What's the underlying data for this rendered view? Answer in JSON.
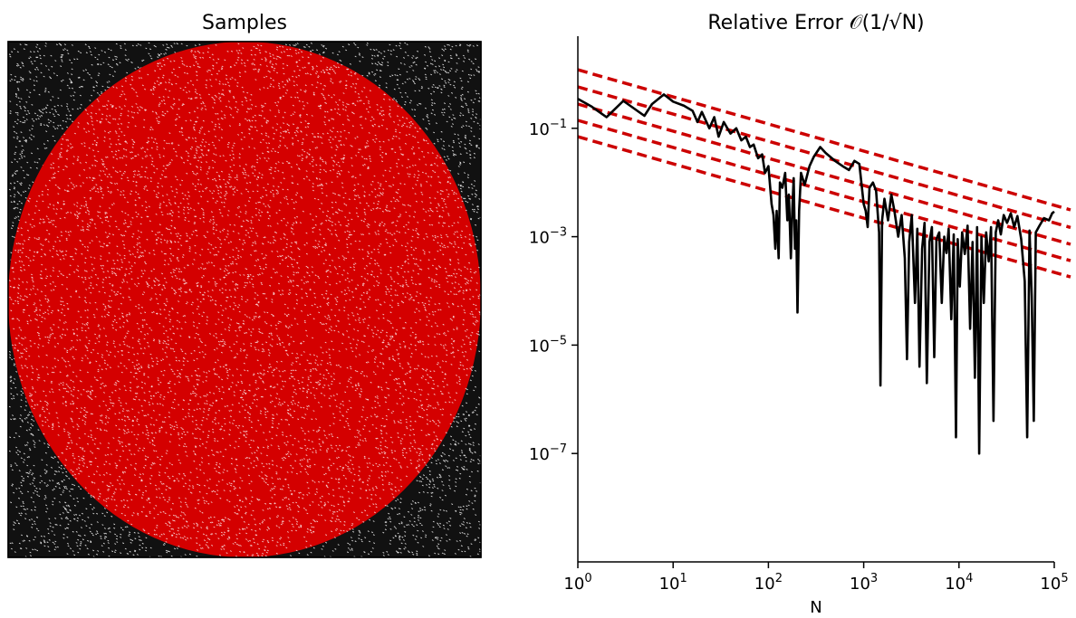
{
  "chart_data": [
    {
      "type": "scatter",
      "title": "Samples",
      "xlim": [
        -1,
        1
      ],
      "ylim": [
        -1,
        1
      ],
      "axes_visible": false,
      "circle_radius": 1,
      "series": [
        {
          "role": "inside unit circle",
          "color": "#cc0000"
        },
        {
          "role": "outside unit circle",
          "color": "#000000"
        }
      ]
    },
    {
      "type": "line",
      "title": "Relative Error 𝒪(1/√N)",
      "xlabel": "N",
      "ylabel": "",
      "xscale": "log",
      "yscale": "log",
      "xlim": [
        1,
        100000
      ],
      "ylim": [
        1e-09,
        5
      ],
      "grid": false,
      "xticks": [
        {
          "value": 1,
          "base": "10",
          "exp": "0"
        },
        {
          "value": 10,
          "base": "10",
          "exp": "1"
        },
        {
          "value": 100,
          "base": "10",
          "exp": "2"
        },
        {
          "value": 1000,
          "base": "10",
          "exp": "3"
        },
        {
          "value": 10000,
          "base": "10",
          "exp": "4"
        },
        {
          "value": 100000,
          "base": "10",
          "exp": "5"
        }
      ],
      "yticks": [
        {
          "value": 0.1,
          "base": "10",
          "exp": "−1"
        },
        {
          "value": 0.001,
          "base": "10",
          "exp": "−3"
        },
        {
          "value": 1e-05,
          "base": "10",
          "exp": "−5"
        },
        {
          "value": 1e-07,
          "base": "10",
          "exp": "−7"
        }
      ],
      "series": [
        {
          "style": "solid",
          "color": "#000000",
          "points": [
            [
              1,
              0.35
            ],
            [
              1.4,
              0.25
            ],
            [
              2,
              0.16
            ],
            [
              3,
              0.32
            ],
            [
              5,
              0.17
            ],
            [
              6,
              0.28
            ],
            [
              8,
              0.42
            ],
            [
              10,
              0.31
            ],
            [
              13,
              0.26
            ],
            [
              16,
              0.21
            ],
            [
              18,
              0.13
            ],
            [
              20,
              0.2
            ],
            [
              24,
              0.1
            ],
            [
              27,
              0.16
            ],
            [
              30,
              0.07
            ],
            [
              34,
              0.13
            ],
            [
              40,
              0.08
            ],
            [
              46,
              0.1
            ],
            [
              52,
              0.06
            ],
            [
              58,
              0.07
            ],
            [
              64,
              0.045
            ],
            [
              70,
              0.05
            ],
            [
              78,
              0.028
            ],
            [
              86,
              0.033
            ],
            [
              92,
              0.015
            ],
            [
              100,
              0.02
            ],
            [
              108,
              0.004
            ],
            [
              113,
              0.0025
            ],
            [
              118,
              0.0006
            ],
            [
              122,
              0.003
            ],
            [
              128,
              0.0004
            ],
            [
              132,
              0.01
            ],
            [
              140,
              0.008
            ],
            [
              150,
              0.015
            ],
            [
              158,
              0.002
            ],
            [
              164,
              0.006
            ],
            [
              172,
              0.0004
            ],
            [
              178,
              0.003
            ],
            [
              184,
              0.012
            ],
            [
              190,
              0.0006
            ],
            [
              196,
              0.002
            ],
            [
              202,
              4e-05
            ],
            [
              210,
              0.003
            ],
            [
              220,
              0.015
            ],
            [
              240,
              0.009
            ],
            [
              270,
              0.02
            ],
            [
              300,
              0.03
            ],
            [
              350,
              0.045
            ],
            [
              400,
              0.035
            ],
            [
              500,
              0.025
            ],
            [
              600,
              0.02
            ],
            [
              700,
              0.017
            ],
            [
              800,
              0.025
            ],
            [
              900,
              0.022
            ],
            [
              1000,
              0.004
            ],
            [
              1050,
              0.003
            ],
            [
              1100,
              0.0015
            ],
            [
              1150,
              0.008
            ],
            [
              1250,
              0.01
            ],
            [
              1350,
              0.007
            ],
            [
              1450,
              0.0012
            ],
            [
              1500,
              1.8e-06
            ],
            [
              1560,
              0.002
            ],
            [
              1650,
              0.005
            ],
            [
              1800,
              0.002
            ],
            [
              1950,
              0.006
            ],
            [
              2100,
              0.003
            ],
            [
              2300,
              0.001
            ],
            [
              2500,
              0.0025
            ],
            [
              2700,
              0.0004
            ],
            [
              2850,
              5.5e-06
            ],
            [
              3000,
              0.0008
            ],
            [
              3200,
              0.0025
            ],
            [
              3450,
              6e-05
            ],
            [
              3650,
              0.0014
            ],
            [
              3850,
              4e-06
            ],
            [
              4100,
              0.0006
            ],
            [
              4350,
              0.0018
            ],
            [
              4600,
              2e-06
            ],
            [
              4900,
              0.0008
            ],
            [
              5200,
              0.0015
            ],
            [
              5500,
              6e-06
            ],
            [
              5800,
              0.0009
            ],
            [
              6200,
              0.0012
            ],
            [
              6600,
              6e-05
            ],
            [
              7000,
              0.001
            ],
            [
              7400,
              0.0005
            ],
            [
              7800,
              0.0014
            ],
            [
              8300,
              3e-05
            ],
            [
              8800,
              0.0011
            ],
            [
              9300,
              2e-07
            ],
            [
              9700,
              0.0009
            ],
            [
              10200,
              0.00012
            ],
            [
              10800,
              0.0012
            ],
            [
              11500,
              0.00048
            ],
            [
              12300,
              0.0016
            ],
            [
              13100,
              2e-05
            ],
            [
              13900,
              0.0008
            ],
            [
              14700,
              2.5e-06
            ],
            [
              15500,
              0.0015
            ],
            [
              16300,
              1e-07
            ],
            [
              17200,
              0.001
            ],
            [
              18200,
              6e-05
            ],
            [
              19300,
              0.0012
            ],
            [
              20500,
              0.00035
            ],
            [
              21700,
              0.0015
            ],
            [
              23000,
              4e-07
            ],
            [
              24300,
              0.0012
            ],
            [
              25800,
              0.002
            ],
            [
              27500,
              0.0011
            ],
            [
              29500,
              0.0025
            ],
            [
              32000,
              0.0018
            ],
            [
              35000,
              0.0027
            ],
            [
              38000,
              0.0015
            ],
            [
              41000,
              0.0024
            ],
            [
              45000,
              0.0009
            ],
            [
              49000,
              0.00015
            ],
            [
              52000,
              2e-07
            ],
            [
              55000,
              0.0013
            ],
            [
              58000,
              8e-05
            ],
            [
              61000,
              4e-07
            ],
            [
              64000,
              0.0012
            ],
            [
              70000,
              0.0016
            ],
            [
              78000,
              0.0022
            ],
            [
              88000,
              0.002
            ],
            [
              95000,
              0.0027
            ],
            [
              100000,
              0.0029
            ]
          ]
        },
        {
          "style": "dashed",
          "color": "#cc0000",
          "points": [
            [
              1,
              1.2
            ],
            [
              100000,
              0.0038
            ]
          ]
        },
        {
          "style": "dashed",
          "color": "#cc0000",
          "points": [
            [
              1,
              0.58
            ],
            [
              100000,
              0.0018
            ]
          ]
        },
        {
          "style": "dashed",
          "color": "#cc0000",
          "points": [
            [
              1,
              0.28
            ],
            [
              100000,
              0.00088
            ]
          ]
        },
        {
          "style": "dashed",
          "color": "#cc0000",
          "points": [
            [
              1,
              0.14
            ],
            [
              100000,
              0.00044
            ]
          ]
        },
        {
          "style": "dashed",
          "color": "#cc0000",
          "points": [
            [
              1,
              0.07
            ],
            [
              100000,
              0.00022
            ]
          ]
        }
      ]
    }
  ]
}
